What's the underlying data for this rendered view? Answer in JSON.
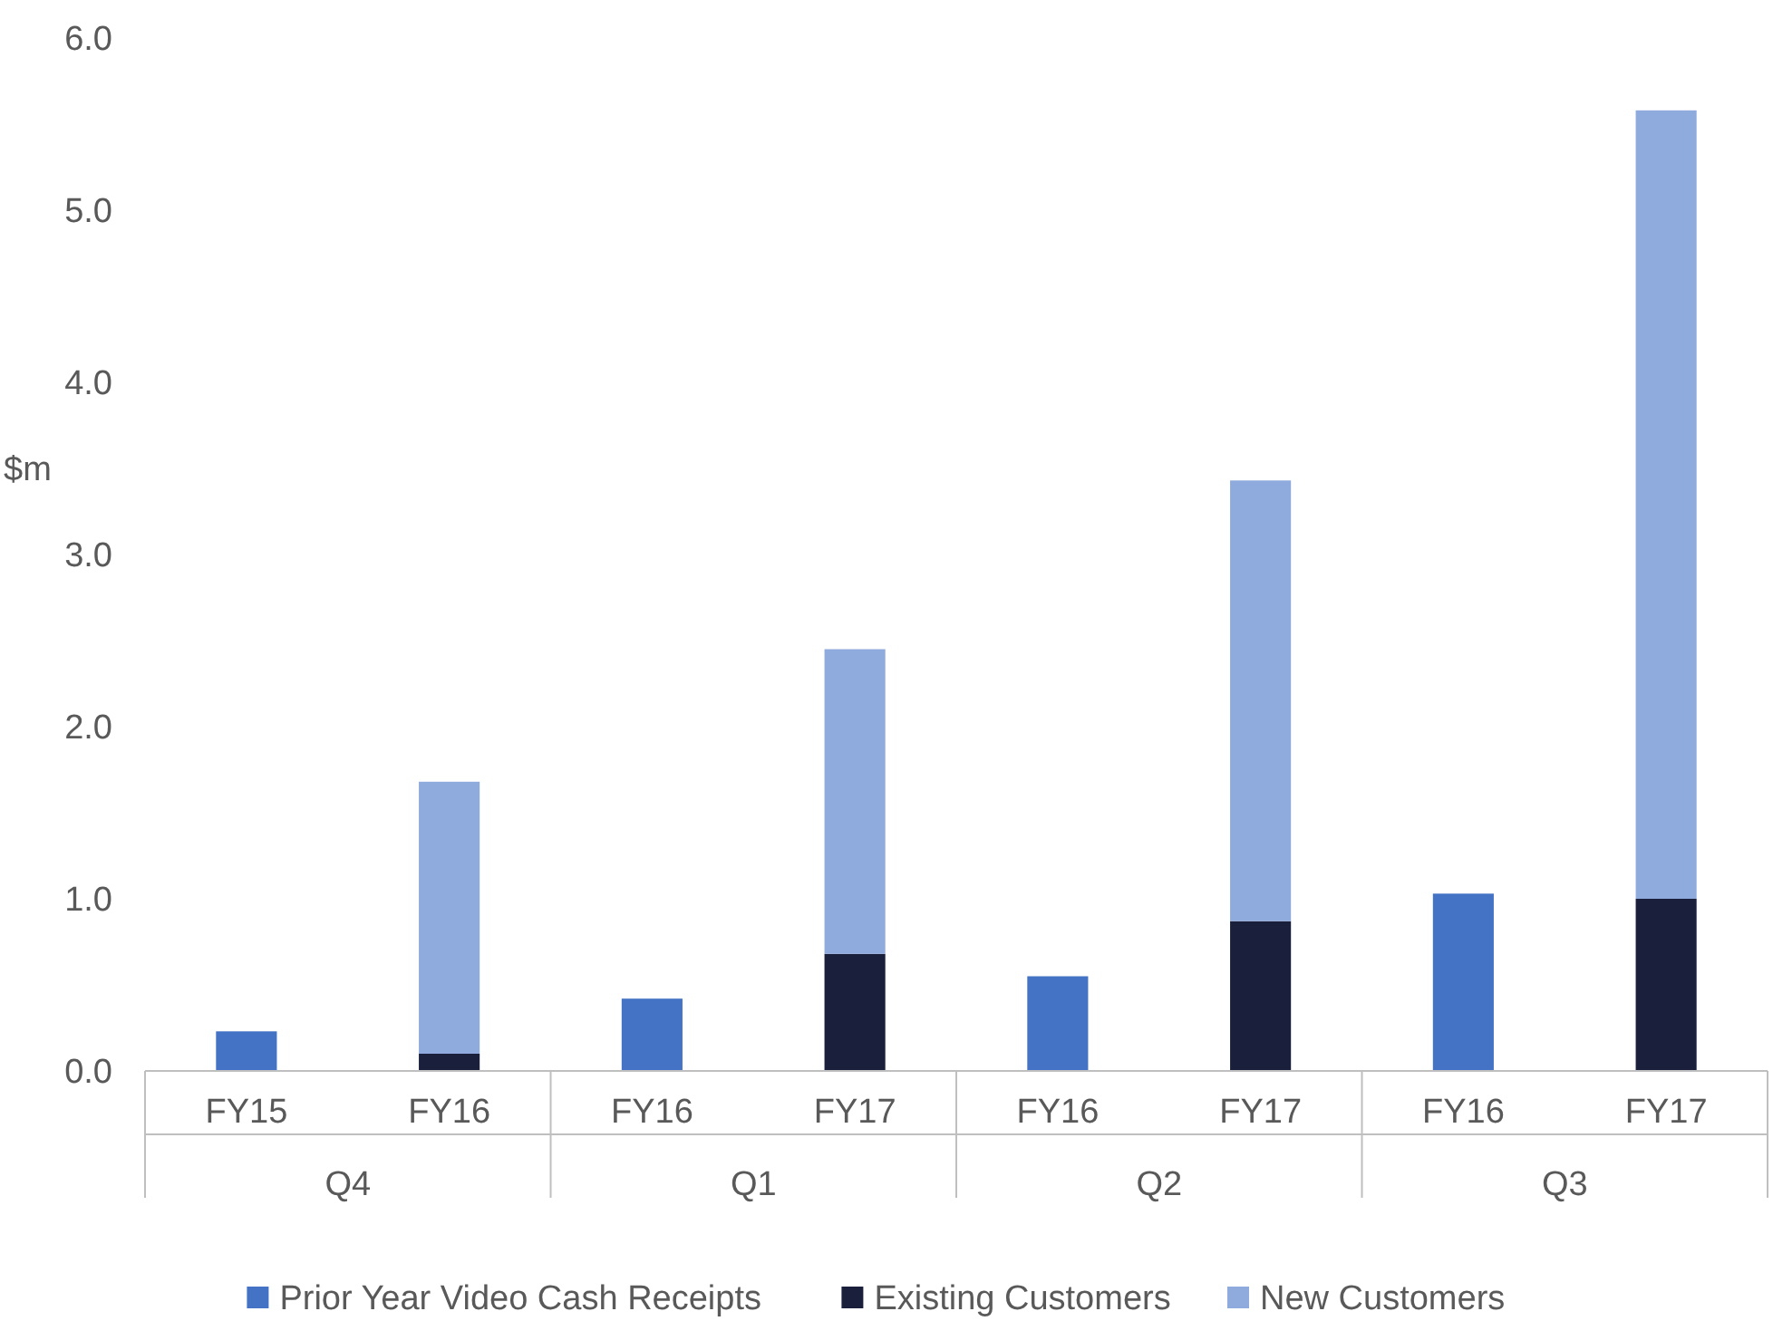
{
  "chart_data": {
    "type": "bar",
    "stacked": true,
    "ylabel": "$m",
    "categories": [
      "FY15",
      "FY16",
      "FY16",
      "FY17",
      "FY16",
      "FY17",
      "FY16",
      "FY17"
    ],
    "annotations": [
      "Q4",
      "Q1",
      "Q2",
      "Q3"
    ],
    "series": [
      {
        "name": "Prior Year Video Cash Receipts",
        "color": "#4472c4",
        "values": [
          0.23,
          null,
          0.42,
          null,
          0.55,
          null,
          1.03,
          null
        ]
      },
      {
        "name": "Existing Customers",
        "color": "#1a1f3c",
        "values": [
          null,
          0.1,
          null,
          0.68,
          null,
          0.87,
          null,
          1.0
        ]
      },
      {
        "name": "New Customers",
        "color": "#8faadc",
        "values": [
          null,
          1.58,
          null,
          1.77,
          null,
          2.56,
          null,
          4.58
        ]
      }
    ],
    "ylim": [
      0,
      6
    ],
    "yticks": [
      {
        "value": 0,
        "label": "0.0"
      },
      {
        "value": 1,
        "label": "1.0"
      },
      {
        "value": 2,
        "label": "2.0"
      },
      {
        "value": 3,
        "label": "3.0"
      },
      {
        "value": 4,
        "label": "4.0"
      },
      {
        "value": 5,
        "label": "5.0"
      },
      {
        "value": 6,
        "label": "6.0"
      }
    ],
    "grid": false,
    "legend": "bottom"
  }
}
